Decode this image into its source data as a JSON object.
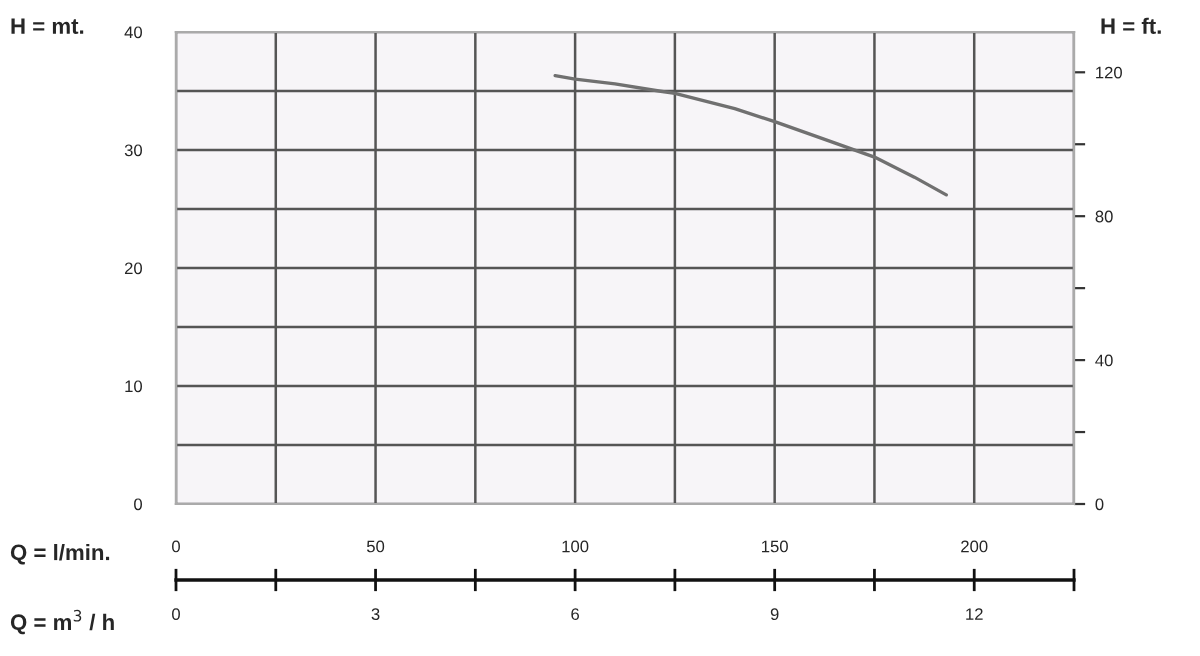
{
  "chart_data": {
    "type": "line",
    "xlabel": "Q = l/min.",
    "x2label": "Q = m$^{3}$ / h",
    "ylabel": "H = mt.",
    "y2label": "H = ft.",
    "x": [
      95,
      100,
      110,
      121,
      125,
      140,
      150,
      165,
      175,
      185,
      193
    ],
    "series": [
      {
        "color": "#707070",
        "values": [
          36.3,
          36.0,
          35.6,
          35.0,
          34.8,
          33.5,
          32.4,
          30.6,
          29.4,
          27.7,
          26.2
        ]
      }
    ],
    "xlim": [
      0,
      225
    ],
    "xticks": [
      0,
      {
        "value": 25,
        "label": null
      },
      50,
      {
        "value": 75,
        "label": null
      },
      100,
      {
        "value": 125,
        "label": null
      },
      150,
      {
        "value": 175,
        "label": null
      },
      200,
      {
        "value": 225,
        "label": null
      }
    ],
    "x2lim": [
      0,
      13.5
    ],
    "x2ticks": [
      0,
      {
        "value": 1.5,
        "label": null
      },
      3,
      {
        "value": 4.5,
        "label": null
      },
      6,
      {
        "value": 7.5,
        "label": null
      },
      9,
      {
        "value": 10.5,
        "label": null
      },
      12,
      {
        "value": 13.5,
        "label": null
      }
    ],
    "ylim": [
      0,
      40
    ],
    "yticks": [
      0,
      {
        "value": 5,
        "label": null
      },
      10,
      {
        "value": 15,
        "label": null
      },
      20,
      {
        "value": 25,
        "label": null
      },
      30,
      {
        "value": 35,
        "label": null
      },
      40
    ],
    "y2lim": [
      0,
      131.2
    ],
    "y2ticks": [
      0,
      {
        "value": 20,
        "label": null
      },
      40,
      {
        "value": 60,
        "label": null
      },
      80,
      {
        "value": 100,
        "label": null
      },
      120
    ],
    "grid": true,
    "marker": "none",
    "line_style": "solid",
    "legend": false
  }
}
